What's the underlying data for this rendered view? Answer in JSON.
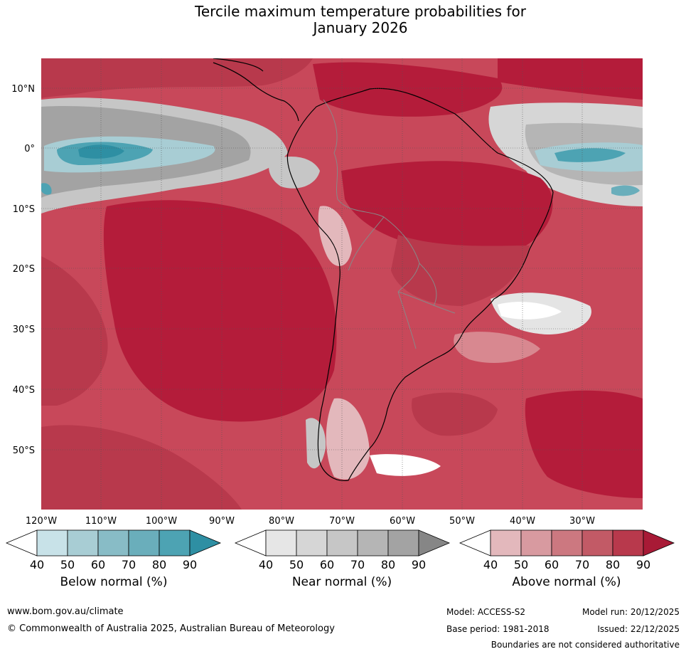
{
  "title": {
    "line1": "Tercile maximum temperature probabilities for",
    "line2": "January 2026"
  },
  "map": {
    "lat_labels": [
      "10°N",
      "0°",
      "10°S",
      "20°S",
      "30°S",
      "40°S",
      "50°S"
    ],
    "lon_labels": [
      "120°W",
      "110°W",
      "100°W",
      "90°W",
      "80°W",
      "70°W",
      "60°W",
      "50°W",
      "40°W",
      "30°W"
    ],
    "colors": {
      "above_strong": "#b41c3a",
      "above_mid": "#c8485a",
      "above_light": "#d88890",
      "above_pale": "#e8b8bc",
      "near_light": "#e4e4e4",
      "near_mid": "#c4c4c4",
      "near_dark": "#a0a0a0",
      "below_light": "#a8d0d8",
      "below_dark": "#2e9ab0",
      "land_outline": "#000000",
      "border": "#888888"
    }
  },
  "colorbars": [
    {
      "label": "Below normal (%)",
      "ticks": [
        "40",
        "50",
        "60",
        "70",
        "80",
        "90"
      ],
      "colors": [
        "#c8e2e8",
        "#a8cdd4",
        "#88bcc6",
        "#6aaebb",
        "#4da3b3",
        "#2e8fa3"
      ]
    },
    {
      "label": "Near normal (%)",
      "ticks": [
        "40",
        "50",
        "60",
        "70",
        "80",
        "90"
      ],
      "colors": [
        "#e6e6e6",
        "#d6d6d6",
        "#c6c6c6",
        "#b5b5b5",
        "#a3a3a3",
        "#868686"
      ]
    },
    {
      "label": "Above normal (%)",
      "ticks": [
        "40",
        "50",
        "60",
        "70",
        "80",
        "90"
      ],
      "colors": [
        "#e3b8bc",
        "#d89aa0",
        "#cc7880",
        "#c25a66",
        "#b8394c",
        "#a81a36"
      ]
    }
  ],
  "footer": {
    "website": "www.bom.gov.au/climate",
    "copyright": "© Commonwealth of Australia 2025, Australian Bureau of Meteorology",
    "model": "Model: ACCESS-S2",
    "base_period": "Base period: 1981-2018",
    "model_run": "Model run: 20/12/2025",
    "issued": "Issued: 22/12/2025",
    "disclaimer": "Boundaries are not considered authoritative"
  }
}
